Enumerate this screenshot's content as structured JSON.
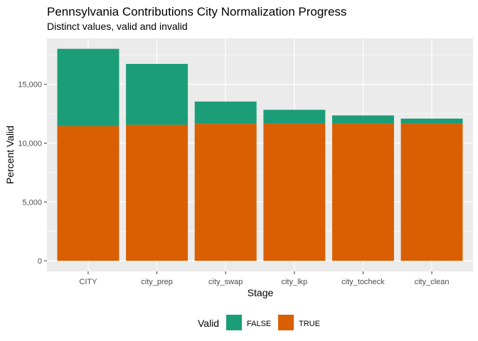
{
  "chart_data": {
    "type": "bar",
    "stacked": true,
    "title": "Pennsylvania Contributions City Normalization Progress",
    "subtitle": "Distinct values, valid and invalid",
    "xlabel": "Stage",
    "ylabel": "Percent Valid",
    "categories": [
      "CITY",
      "city_prep",
      "city_swap",
      "city_lkp",
      "city_tocheck",
      "city_clean"
    ],
    "series": [
      {
        "name": "TRUE",
        "color": "#D95F02",
        "values": [
          11450,
          11560,
          11640,
          11650,
          11650,
          11650
        ]
      },
      {
        "name": "FALSE",
        "color": "#1B9E77",
        "values": [
          6560,
          5170,
          1890,
          1180,
          700,
          430
        ]
      }
    ],
    "ylim": [
      0,
      18000
    ],
    "yticks": [
      0,
      5000,
      10000,
      15000
    ],
    "ytick_labels": [
      "0",
      "5,000",
      "10,000",
      "15,000"
    ],
    "grid": true,
    "panel_background": "#EBEBEB",
    "legend": {
      "title": "Valid",
      "position": "bottom",
      "entries": [
        {
          "label": "FALSE",
          "color": "#1B9E77"
        },
        {
          "label": "TRUE",
          "color": "#D95F02"
        }
      ]
    }
  }
}
